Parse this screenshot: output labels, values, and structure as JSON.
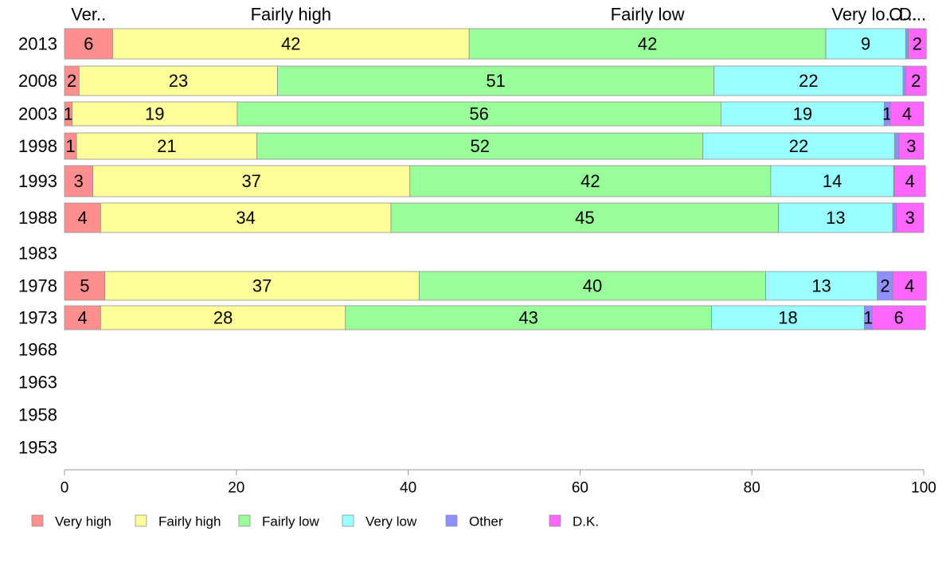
{
  "chart_data": {
    "type": "bar",
    "orientation": "horizontal",
    "stacked": true,
    "x_axis": {
      "range": [
        0,
        100
      ],
      "ticks": [
        "0",
        "20",
        "40",
        "60",
        "80",
        "100"
      ]
    },
    "categories": [
      "2013",
      "2008",
      "2003",
      "1998",
      "1993",
      "1988",
      "1983",
      "1978",
      "1973",
      "1968",
      "1963",
      "1958",
      "1953"
    ],
    "top_labels": [
      "Ver..",
      "Fairly high",
      "Fairly low",
      "Very lo...",
      "O...",
      "D..."
    ],
    "legend": {
      "placement": "bottom-left"
    },
    "series": [
      {
        "name": "Very high",
        "color": "#ff8f8f",
        "values": [
          5.6,
          1.7,
          0.9,
          1.4,
          3.3,
          4.2,
          null,
          4.7,
          4.2,
          null,
          null,
          null,
          null
        ],
        "labels": [
          "6",
          "2",
          "1",
          "1",
          "3",
          "4",
          "",
          "5",
          "4",
          "",
          "",
          "",
          ""
        ]
      },
      {
        "name": "Fairly high",
        "color": "#ffff99",
        "values": [
          41.5,
          23.1,
          19.2,
          21.0,
          36.9,
          33.8,
          null,
          36.6,
          28.5,
          null,
          null,
          null,
          null
        ],
        "labels": [
          "42",
          "23",
          "19",
          "21",
          "37",
          "34",
          "",
          "37",
          "28",
          "",
          "",
          "",
          ""
        ]
      },
      {
        "name": "Fairly low",
        "color": "#99ff99",
        "values": [
          41.5,
          50.8,
          56.3,
          51.9,
          42.0,
          45.1,
          null,
          40.3,
          42.6,
          null,
          null,
          null,
          null
        ],
        "labels": [
          "42",
          "51",
          "56",
          "52",
          "42",
          "45",
          "",
          "40",
          "43",
          "",
          "",
          "",
          ""
        ]
      },
      {
        "name": "Very low",
        "color": "#99ffff",
        "values": [
          9.3,
          22.0,
          19.0,
          22.3,
          14.3,
          13.3,
          null,
          13.0,
          17.8,
          null,
          null,
          null,
          null
        ],
        "labels": [
          "9",
          "22",
          "19",
          "22",
          "14",
          "13",
          "",
          "13",
          "18",
          "",
          "",
          "",
          ""
        ]
      },
      {
        "name": "Other",
        "color": "#8f8fff",
        "values": [
          0.3,
          0.3,
          0.7,
          0.5,
          0.1,
          0.4,
          null,
          1.8,
          0.9,
          null,
          null,
          null,
          null
        ],
        "labels": [
          "",
          "",
          "1",
          "",
          "",
          "",
          "",
          "2",
          "1",
          "",
          "",
          "",
          ""
        ]
      },
      {
        "name": "D.K.",
        "color": "#ff66ff",
        "values": [
          2.1,
          2.4,
          3.9,
          2.9,
          3.6,
          3.2,
          null,
          3.9,
          6.2,
          null,
          null,
          null,
          null
        ],
        "labels": [
          "2",
          "2",
          "4",
          "3",
          "4",
          "3",
          "",
          "4",
          "6",
          "",
          "",
          "",
          ""
        ]
      }
    ]
  }
}
